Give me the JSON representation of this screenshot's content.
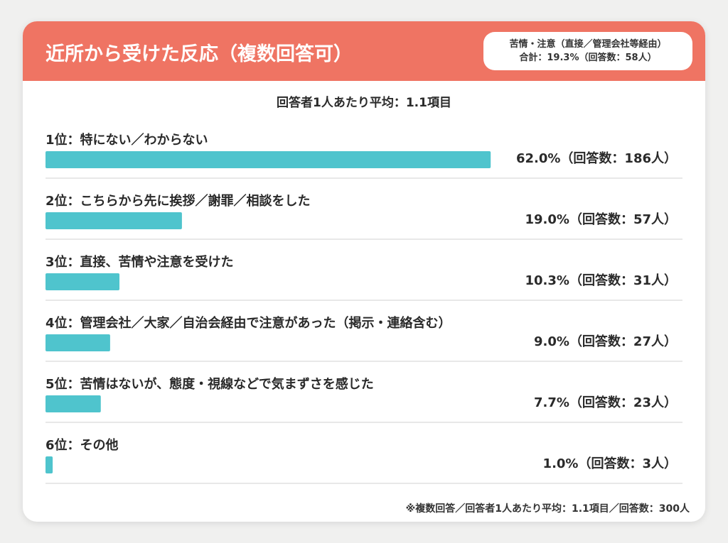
{
  "header": {
    "title": "近所から受けた反応（複数回答可）",
    "badge_line1": "苦情・注意（直接／管理会社等経由）",
    "badge_line2": "合計：19.3%（回答数：58人）"
  },
  "average_text": "回答者1人あたり平均：1.1項目",
  "footnote": "※複数回答／回答者1人あたり平均：1.1項目／回答数：300人",
  "colors": {
    "header": "#ef7463",
    "bar": "#4fc4cd",
    "divider": "#d9d9d9",
    "card": "#ffffff",
    "page": "#f0f0ef"
  },
  "chart_data": {
    "type": "bar",
    "orientation": "horizontal",
    "xlim": [
      0,
      100
    ],
    "grid": false,
    "categories": [
      "1位：特にない／わからない",
      "2位：こちらから先に挨拶／謝罪／相談をした",
      "3位：直接、苦情や注意を受けた",
      "4位：管理会社／大家／自治会経由で注意があった（掲示・連絡含む）",
      "5位：苦情はないが、態度・視線などで気まずさを感じた",
      "6位：その他"
    ],
    "values": [
      62.0,
      19.0,
      10.3,
      9.0,
      7.7,
      1.0
    ],
    "value_labels": [
      "62.0%（回答数：186人）",
      "19.0%（回答数：57人）",
      "10.3%（回答数：31人）",
      "9.0%（回答数：27人）",
      "7.7%（回答数：23人）",
      "1.0%（回答数：3人）"
    ]
  }
}
